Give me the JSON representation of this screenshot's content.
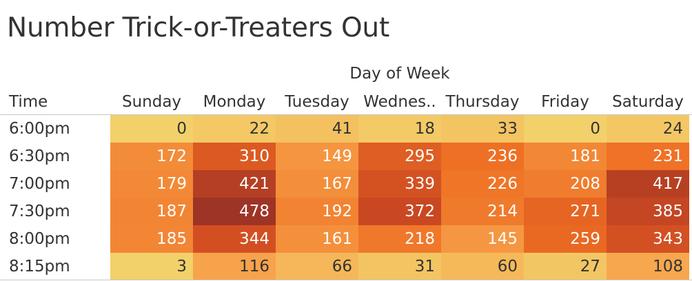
{
  "chart_data": {
    "type": "heatmap",
    "title": "Number Trick-or-Treaters Out",
    "column_group_label": "Day of Week",
    "row_header": "Time",
    "columns": [
      "Sunday",
      "Monday",
      "Tuesday",
      "Wednes..",
      "Thursday",
      "Friday",
      "Saturday"
    ],
    "rows": [
      "6:00pm",
      "6:30pm",
      "7:00pm",
      "7:30pm",
      "8:00pm",
      "8:15pm"
    ],
    "values": [
      [
        0,
        22,
        41,
        18,
        33,
        0,
        24
      ],
      [
        172,
        310,
        149,
        295,
        236,
        181,
        231
      ],
      [
        179,
        421,
        167,
        339,
        226,
        208,
        417
      ],
      [
        187,
        478,
        192,
        372,
        214,
        271,
        385
      ],
      [
        185,
        344,
        161,
        218,
        145,
        259,
        343
      ],
      [
        3,
        116,
        66,
        31,
        60,
        27,
        108
      ]
    ],
    "color_scale": {
      "type": "sequential",
      "colors": [
        "#f2d16b",
        "#f7a24a",
        "#ee6f23",
        "#cf4b22",
        "#9e3425"
      ]
    }
  }
}
